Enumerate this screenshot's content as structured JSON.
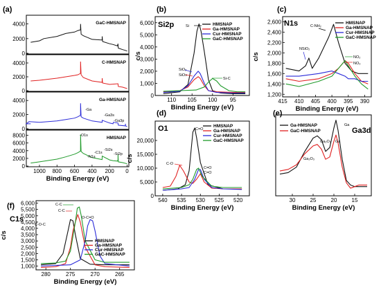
{
  "colors": {
    "black": "#111111",
    "red": "#e02020",
    "blue": "#2a2ad8",
    "green": "#1f9a2a"
  },
  "chart_data": [
    {
      "id": "a",
      "tag": "(a)",
      "type": "line",
      "xlabel": "Binding Energy (eV)",
      "xticks": [
        1000,
        800,
        600,
        400,
        200,
        0
      ],
      "xlim": [
        1150,
        -20
      ],
      "subpanels": [
        {
          "title": "GaC-HMSNAP",
          "color": "black",
          "yticks": [
            0,
            2000,
            4000
          ],
          "ylim": [
            0,
            5000
          ],
          "x": [
            1100,
            1000,
            950,
            800,
            700,
            600,
            560,
            532,
            531,
            525,
            500,
            400,
            285,
            284,
            280,
            200,
            160,
            110,
            104,
            100,
            50,
            20,
            0
          ],
          "y": [
            1500,
            1700,
            2000,
            2300,
            2700,
            2900,
            3100,
            3200,
            4000,
            2600,
            2400,
            1900,
            1800,
            2300,
            1600,
            1300,
            1200,
            1000,
            1300,
            700,
            500,
            400,
            300
          ]
        },
        {
          "title": "C-HMSNAP",
          "color": "red",
          "yticks": [
            0,
            2000,
            4000
          ],
          "ylim": [
            0,
            5000
          ],
          "x": [
            1100,
            1000,
            800,
            700,
            600,
            560,
            532,
            531,
            525,
            500,
            400,
            285,
            284,
            280,
            200,
            104,
            100,
            50,
            0
          ],
          "y": [
            1400,
            1500,
            1800,
            2000,
            2200,
            2300,
            2500,
            4200,
            2300,
            1900,
            1400,
            1200,
            1800,
            1100,
            900,
            1000,
            600,
            500,
            300
          ]
        },
        {
          "title": "Ga-HMSNAP",
          "color": "blue",
          "yticks": [
            0,
            2000,
            4000
          ],
          "ylim": [
            0,
            5000
          ],
          "x": [
            1100,
            1150,
            1118,
            1000,
            800,
            700,
            600,
            560,
            532,
            531,
            525,
            500,
            400,
            285,
            284,
            200,
            160,
            158,
            104,
            100,
            20,
            19,
            18,
            0
          ],
          "y": [
            700,
            700,
            1000,
            900,
            1100,
            1300,
            1500,
            1700,
            1900,
            3600,
            1700,
            1500,
            1100,
            900,
            1200,
            800,
            700,
            900,
            800,
            500,
            400,
            700,
            400,
            300
          ]
        },
        {
          "title": "HMSNAP",
          "color": "green",
          "yticks": [
            0,
            2000,
            4000,
            6000,
            8000
          ],
          "ylim": [
            0,
            9000
          ],
          "x": [
            1100,
            1000,
            800,
            700,
            600,
            560,
            532,
            531,
            525,
            500,
            400,
            285,
            284,
            200,
            160,
            110,
            104,
            103,
            100,
            50,
            0
          ],
          "y": [
            800,
            1100,
            1800,
            2400,
            3100,
            3500,
            3900,
            8200,
            3800,
            3300,
            2200,
            1700,
            2600,
            1600,
            1400,
            1300,
            1600,
            3000,
            1100,
            900,
            600
          ]
        }
      ],
      "annotations": [
        "-O1s",
        "-Ga",
        "-Ga3s",
        "-Ga3p",
        "-N1s",
        "-C1s",
        "-Si2s",
        "-Si2p"
      ]
    },
    {
      "id": "b",
      "tag": "(b)",
      "title": "Si2p",
      "type": "line",
      "xlabel": "Binding Energy (eV)",
      "ylabel": "c/s",
      "xticks": [
        110,
        105,
        100,
        95
      ],
      "xlim": [
        114,
        91
      ],
      "yticks": [
        0,
        1000,
        2000,
        3000,
        4000,
        5000,
        6000
      ],
      "ylim": [
        0,
        6500
      ],
      "series": [
        {
          "name": "HMSNAP",
          "color": "black",
          "x": [
            112,
            108,
            106,
            104.5,
            103.8,
            103.3,
            102.8,
            102,
            101,
            100,
            98,
            95,
            92
          ],
          "y": [
            150,
            300,
            900,
            3500,
            5300,
            5900,
            5300,
            3600,
            1300,
            400,
            200,
            150,
            150
          ]
        },
        {
          "name": "Ga-HMSNAP",
          "color": "red",
          "x": [
            112,
            108,
            106,
            104.5,
            103.5,
            103,
            102,
            101,
            99,
            95,
            92
          ],
          "y": [
            300,
            400,
            700,
            1300,
            1550,
            1400,
            800,
            400,
            300,
            250,
            250
          ]
        },
        {
          "name": "Cur-HMSNAP",
          "color": "blue",
          "x": [
            112,
            108,
            106,
            104.5,
            103.5,
            103,
            102,
            101,
            99,
            95,
            92
          ],
          "y": [
            250,
            350,
            800,
            1600,
            2000,
            1800,
            1000,
            400,
            250,
            200,
            200
          ]
        },
        {
          "name": "GaC-HMSNAP",
          "color": "green",
          "x": [
            112,
            108,
            104,
            102,
            101,
            100,
            99,
            98,
            96,
            94,
            92
          ],
          "y": [
            350,
            400,
            450,
            700,
            1100,
            1400,
            1200,
            800,
            400,
            300,
            300
          ]
        }
      ],
      "annotations": [
        "Si",
        "SiO₂",
        "SiOx",
        "Si-C"
      ]
    },
    {
      "id": "c",
      "tag": "(c)",
      "title": "N1s",
      "type": "line",
      "xlabel": "Binding Energy (eV)",
      "ylabel": "c/s",
      "xticks": [
        415,
        410,
        405,
        400,
        395,
        390
      ],
      "xlim": [
        415,
        388
      ],
      "yticks": [
        1200,
        1400,
        1600,
        1800,
        2000,
        2200,
        2400,
        2600
      ],
      "ylim": [
        1150,
        2700
      ],
      "series": [
        {
          "name": "HMSNAP",
          "color": "black",
          "x": [
            414,
            410,
            408,
            407,
            406,
            404,
            401,
            399.5,
            398,
            396,
            394,
            392,
            389
          ],
          "y": [
            1700,
            1650,
            1750,
            1900,
            1700,
            1900,
            2300,
            2550,
            2200,
            1800,
            1650,
            1600,
            1600
          ]
        },
        {
          "name": "Ga-HMSNAP",
          "color": "red",
          "x": [
            414,
            410,
            404,
            400,
            398,
            396,
            395,
            393,
            391,
            389
          ],
          "y": [
            1500,
            1450,
            1500,
            1600,
            1700,
            1850,
            1800,
            1600,
            1450,
            1400
          ]
        },
        {
          "name": "Cur-HMSNAP",
          "color": "blue",
          "x": [
            414,
            410,
            404,
            400,
            398,
            396,
            395,
            393,
            391,
            389
          ],
          "y": [
            1550,
            1550,
            1600,
            1650,
            1600,
            1550,
            1500,
            1500,
            1450,
            1450
          ]
        },
        {
          "name": "GaC-HMSNAP",
          "color": "green",
          "x": [
            414,
            410,
            404,
            400,
            398,
            396,
            395,
            393,
            391,
            389
          ],
          "y": [
            1400,
            1350,
            1450,
            1550,
            1700,
            1850,
            1750,
            1550,
            1400,
            1300
          ]
        }
      ],
      "annotations": [
        "C-NH₂",
        "NSiO₂",
        "NO₂",
        "NO₃"
      ]
    },
    {
      "id": "d",
      "tag": "(d)",
      "title": "O1",
      "type": "line",
      "xlabel": "Binding Energy (eV)",
      "ylabel": "c/s",
      "xticks": [
        540,
        535,
        530,
        525,
        520
      ],
      "xlim": [
        542,
        517
      ],
      "yticks": [
        0,
        5000,
        10000,
        15000,
        20000
      ],
      "ylim": [
        0,
        27000
      ],
      "series": [
        {
          "name": "HMSNAP",
          "color": "black",
          "x": [
            540,
            536,
            534,
            533,
            532.5,
            532,
            531.5,
            531,
            530,
            528,
            524,
            519
          ],
          "y": [
            2000,
            2500,
            4000,
            9000,
            16000,
            23000,
            24500,
            21000,
            12000,
            4000,
            2500,
            2500
          ]
        },
        {
          "name": "Ga-HMSNAP",
          "color": "red",
          "x": [
            540,
            538,
            536.5,
            535.5,
            534.5,
            533,
            532,
            531,
            530,
            529,
            527,
            524,
            519
          ],
          "y": [
            3000,
            3500,
            7000,
            11000,
            9000,
            5000,
            4500,
            6000,
            8000,
            5000,
            2800,
            2500,
            2500
          ]
        },
        {
          "name": "Cur-HMSNAP",
          "color": "blue",
          "x": [
            540,
            535,
            533,
            531.5,
            530.5,
            530,
            529,
            527,
            524,
            519
          ],
          "y": [
            2000,
            2500,
            3000,
            6000,
            9500,
            9500,
            6000,
            3000,
            2500,
            2300
          ]
        },
        {
          "name": "GaC-HMSNAP",
          "color": "green",
          "x": [
            540,
            535,
            533,
            532,
            531,
            530.5,
            529.5,
            527,
            524,
            519
          ],
          "y": [
            2500,
            3000,
            4000,
            6000,
            9500,
            10000,
            7000,
            3500,
            3000,
            3000
          ]
        }
      ],
      "annotations": [
        "C=O",
        "C-O",
        "C=O",
        "C=O"
      ]
    },
    {
      "id": "e",
      "tag": "(e)",
      "title": "Ga3d",
      "type": "line",
      "xlabel": "Binding Energy (eV)",
      "xticks": [
        30,
        25,
        20,
        15
      ],
      "xlim": [
        34,
        11
      ],
      "series": [
        {
          "name": "Ga-HMSNAP",
          "color": "black",
          "x": [
            33,
            31,
            29,
            27,
            25,
            24,
            23,
            22,
            21,
            20,
            19.5,
            19,
            18,
            17,
            16,
            15,
            14,
            12
          ],
          "y": [
            0.26,
            0.28,
            0.35,
            0.55,
            0.72,
            0.75,
            0.7,
            0.55,
            0.6,
            0.85,
            0.95,
            0.82,
            0.45,
            0.18,
            0.12,
            0.1,
            0.1,
            0.1
          ]
        },
        {
          "name": "GaC-HMSNAP",
          "color": "red",
          "x": [
            33,
            31,
            29,
            27,
            25,
            24,
            23,
            22,
            21,
            20,
            19.5,
            19,
            18,
            17,
            16,
            15,
            14,
            12
          ],
          "y": [
            0.3,
            0.32,
            0.38,
            0.52,
            0.62,
            0.64,
            0.58,
            0.45,
            0.48,
            0.68,
            0.76,
            0.66,
            0.35,
            0.15,
            0.08,
            0.1,
            0.12,
            0.12
          ]
        }
      ],
      "annotations": [
        "Ga",
        "Ga₂O₃",
        "Ga",
        "Ga₂O₃"
      ]
    },
    {
      "id": "f",
      "tag": "(f)",
      "title": "C1s",
      "type": "line",
      "xlabel": "Binding Energy (eV)",
      "ylabel": "c/s",
      "xticks": [
        280,
        275,
        270,
        265
      ],
      "xlim": [
        282,
        262
      ],
      "yticks": [
        1000,
        1500,
        2000,
        2500,
        3000,
        3500,
        4000,
        4500,
        5000,
        5500,
        6000
      ],
      "ylim": [
        700,
        6200
      ],
      "series": [
        {
          "name": "HMSNAP",
          "color": "black",
          "x": [
            281,
            278,
            276.5,
            275.5,
            275,
            274.5,
            274,
            273,
            271,
            268,
            263
          ],
          "y": [
            1100,
            1200,
            2000,
            3800,
            4700,
            4600,
            3500,
            1600,
            1150,
            1100,
            1100
          ]
        },
        {
          "name": "Ga-HMSNAP",
          "color": "red",
          "x": [
            281,
            278,
            276,
            275,
            274.5,
            274,
            273.5,
            273,
            272,
            270,
            268,
            263
          ],
          "y": [
            900,
            950,
            1200,
            2500,
            3800,
            4500,
            5100,
            4500,
            2500,
            1100,
            950,
            900
          ]
        },
        {
          "name": "Cur-HMSNAP",
          "color": "blue",
          "x": [
            281,
            278,
            275,
            273,
            272,
            271.5,
            271,
            270.5,
            270,
            269,
            268,
            263
          ],
          "y": [
            1000,
            1050,
            1100,
            1500,
            3000,
            4200,
            4700,
            4600,
            3800,
            1800,
            1200,
            1000
          ]
        },
        {
          "name": "GaC-HMSNAP",
          "color": "green",
          "x": [
            281,
            278,
            276,
            275,
            274,
            273.6,
            273.2,
            272.8,
            272,
            270,
            268,
            263
          ],
          "y": [
            1200,
            1250,
            1400,
            2200,
            4500,
            5600,
            5700,
            5000,
            3000,
            1500,
            1300,
            1300
          ]
        }
      ],
      "annotations": [
        "C-C",
        "C-C",
        "C-O-C",
        "O-C=O"
      ]
    }
  ]
}
